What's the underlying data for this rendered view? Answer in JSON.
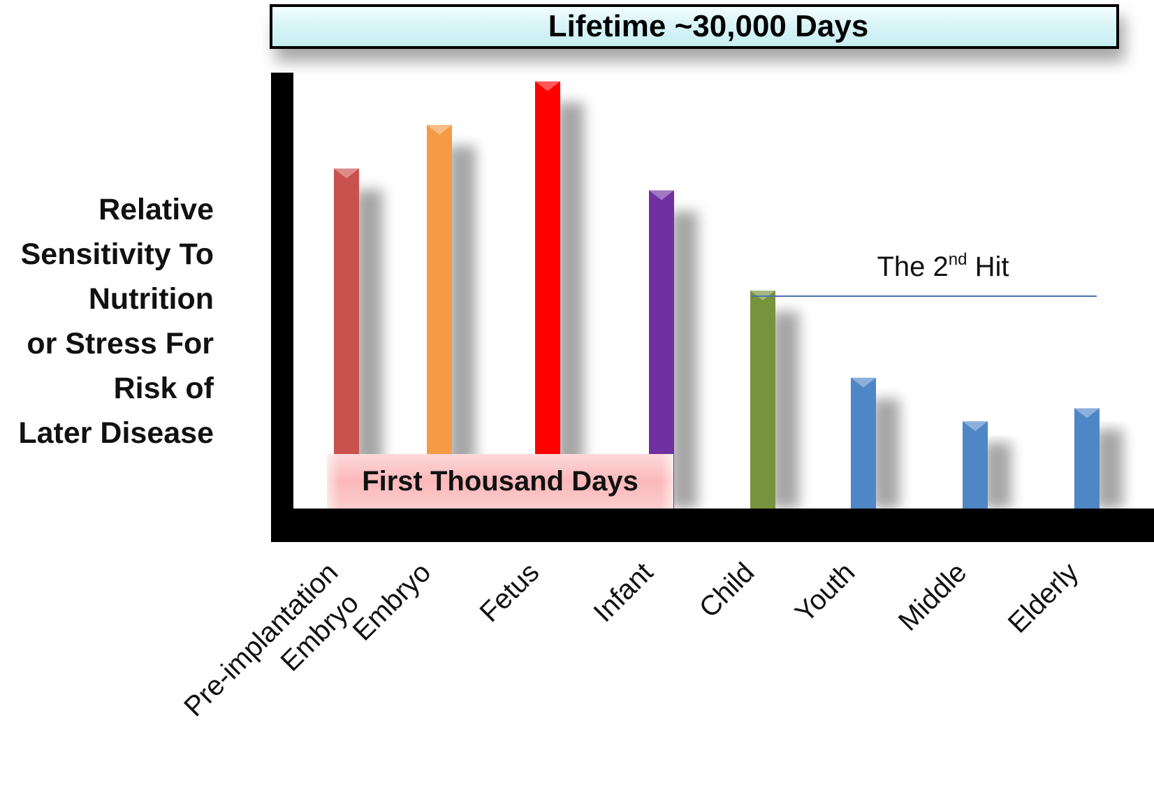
{
  "chart_data": {
    "type": "bar",
    "title": "Lifetime ~30,000 Days",
    "ylabel": [
      "Relative",
      "Sensitivity To",
      "Nutrition",
      "or Stress For",
      "Risk of",
      "Later Disease"
    ],
    "xlabel": "",
    "ylim": [
      0,
      100
    ],
    "grid": false,
    "legend": "none",
    "categories": [
      "Pre-implantation Embryo",
      "Embryo",
      "Fetus",
      "Infant",
      "Child",
      "Youth",
      "Middle",
      "Elderly"
    ],
    "category_lines": [
      [
        "Pre-implantation",
        "Embryo"
      ],
      [
        "Embryo"
      ],
      [
        "Fetus"
      ],
      [
        "Infant"
      ],
      [
        "Child"
      ],
      [
        "Youth"
      ],
      [
        "Middle"
      ],
      [
        "Elderly"
      ]
    ],
    "values": [
      78,
      88,
      98,
      73,
      50,
      30,
      20,
      23
    ],
    "colors": [
      "#c9514e",
      "#f59a45",
      "#ff0000",
      "#7030a0",
      "#77933c",
      "#4f86c6",
      "#4f86c6",
      "#4f86c6"
    ],
    "annotations": {
      "first_thousand_days": "First Thousand Days",
      "second_hit_prefix": "The 2",
      "second_hit_sup": "nd",
      "second_hit_suffix": " Hit"
    }
  }
}
